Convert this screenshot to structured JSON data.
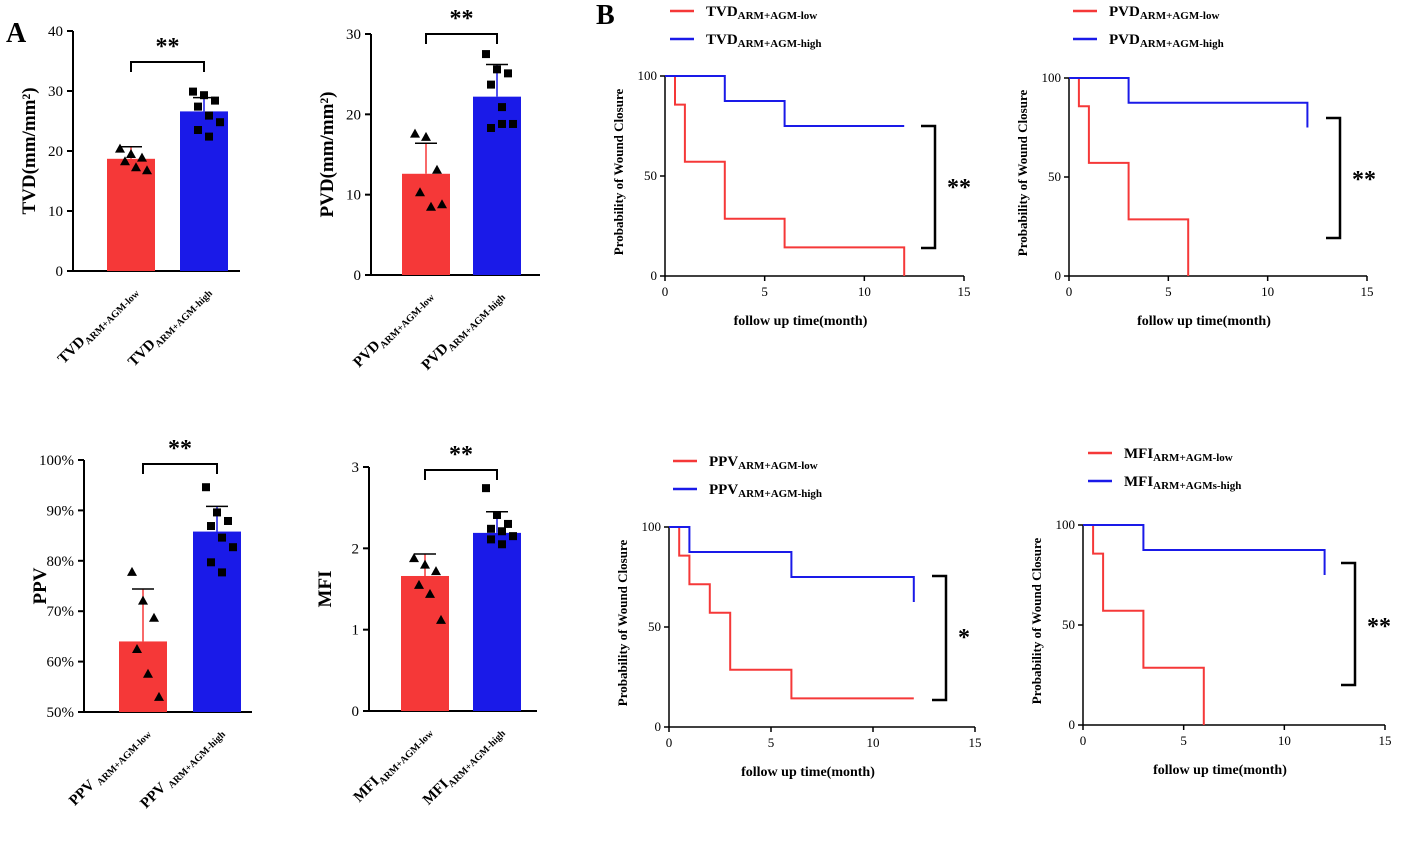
{
  "panels": {
    "a": "A",
    "b": "B"
  },
  "colors": {
    "low": "#f53838",
    "high": "#1a1ae8",
    "axis": "#000000"
  },
  "chart_data": [
    {
      "id": "tvd",
      "type": "bar",
      "ylabel": "TVD(mm/mm²)",
      "ylim": [
        0,
        40
      ],
      "yticks": [
        "0",
        "10",
        "20",
        "30",
        "40"
      ],
      "categories": [
        {
          "main": "TVD",
          "sub": "ARM+AGM-low"
        },
        {
          "main": "TVD",
          "sub": "ARM+AGM-high"
        }
      ],
      "values": [
        18.7,
        26.6
      ],
      "errors": [
        2.0,
        2.3
      ],
      "points": [
        [
          20.4,
          19.5,
          18.9,
          18.3,
          17.3,
          16.8
        ],
        [
          29.9,
          29.3,
          28.4,
          27.4,
          25.9,
          24.8,
          23.5,
          22.4
        ]
      ],
      "markers": [
        "triangle",
        "square"
      ],
      "significance": "**"
    },
    {
      "id": "pvd",
      "type": "bar",
      "ylabel": "PVD(mm/mm²)",
      "ylim": [
        0,
        30
      ],
      "yticks": [
        "0",
        "10",
        "20",
        "30"
      ],
      "categories": [
        {
          "main": "PVD",
          "sub": "ARM+AGM-low"
        },
        {
          "main": "PVD",
          "sub": "ARM+AGM-high"
        }
      ],
      "values": [
        12.6,
        22.2
      ],
      "errors": [
        3.8,
        4.0
      ],
      "points": [
        [
          17.6,
          17.2,
          13.1,
          10.3,
          8.5,
          8.8
        ],
        [
          27.5,
          25.6,
          25.1,
          23.7,
          20.9,
          18.8,
          18.3,
          18.8
        ]
      ],
      "markers": [
        "triangle",
        "square"
      ],
      "significance": "**"
    },
    {
      "id": "ppv",
      "type": "bar",
      "ylabel": "PPV",
      "ylim": [
        50,
        100
      ],
      "yticks": [
        "50%",
        "60%",
        "70%",
        "80%",
        "90%",
        "100%"
      ],
      "categories": [
        {
          "main": "PPV ",
          "sub": "ARM+AGM-low"
        },
        {
          "main": "PPV ",
          "sub": "ARM+AGM-high"
        }
      ],
      "values": [
        64.0,
        85.8
      ],
      "errors": [
        10.4,
        5.0
      ],
      "points": [
        [
          77.8,
          72.1,
          68.7,
          62.5,
          57.6,
          53.0
        ],
        [
          94.6,
          89.6,
          87.9,
          86.9,
          84.6,
          82.7,
          79.7,
          77.7
        ]
      ],
      "markers": [
        "triangle",
        "square"
      ],
      "significance": "**"
    },
    {
      "id": "mfi",
      "type": "bar",
      "ylabel": "MFI",
      "ylim": [
        0,
        3
      ],
      "yticks": [
        "0",
        "1",
        "2",
        "3"
      ],
      "categories": [
        {
          "main": "MFI",
          "sub": "ARM+AGM-low"
        },
        {
          "main": "MFI",
          "sub": "ARM+AGM-high"
        }
      ],
      "values": [
        1.66,
        2.19
      ],
      "errors": [
        0.27,
        0.26
      ],
      "points": [
        [
          1.88,
          1.8,
          1.72,
          1.55,
          1.44,
          1.12
        ],
        [
          2.74,
          2.41,
          2.3,
          2.24,
          2.21,
          2.15,
          2.11,
          2.05
        ]
      ],
      "markers": [
        "triangle",
        "square"
      ],
      "significance": "**"
    },
    {
      "id": "km_tvd",
      "type": "line",
      "ylabel": "Probability of Wound Closure",
      "xlabel": "follow up time(month)",
      "xlim": [
        0,
        15
      ],
      "ylim": [
        0,
        100
      ],
      "xticks": [
        "0",
        "5",
        "10",
        "15"
      ],
      "yticks": [
        "0",
        "50",
        "100"
      ],
      "series": [
        {
          "name": "TVD",
          "sub": "ARM+AGM-low",
          "color": "low",
          "x": [
            0,
            0.5,
            0.5,
            1,
            1,
            3,
            3,
            6,
            6,
            12,
            12
          ],
          "y": [
            100,
            100,
            85.7,
            85.7,
            57.1,
            57.1,
            28.6,
            28.6,
            14.3,
            14.3,
            0
          ]
        },
        {
          "name": "TVD",
          "sub": "ARM+AGM-high",
          "color": "high",
          "x": [
            0,
            3,
            3,
            6,
            6,
            12
          ],
          "y": [
            100,
            100,
            87.5,
            87.5,
            75,
            75
          ]
        }
      ],
      "significance": "**"
    },
    {
      "id": "km_pvd",
      "type": "line",
      "ylabel": "Probability of Wound Closure",
      "xlabel": "follow up time(month)",
      "xlim": [
        0,
        15
      ],
      "ylim": [
        0,
        100
      ],
      "xticks": [
        "0",
        "5",
        "10",
        "15"
      ],
      "yticks": [
        "0",
        "50",
        "100"
      ],
      "series": [
        {
          "name": "PVD",
          "sub": "ARM+AGM-low",
          "color": "low",
          "x": [
            0,
            0.5,
            0.5,
            1,
            1,
            3,
            3,
            6,
            6
          ],
          "y": [
            100,
            100,
            85.7,
            85.7,
            57.1,
            57.1,
            28.6,
            28.6,
            0
          ]
        },
        {
          "name": "PVD",
          "sub": "ARM+AGM-high",
          "color": "high",
          "x": [
            0,
            3,
            3,
            12,
            12
          ],
          "y": [
            100,
            100,
            87.5,
            87.5,
            75
          ]
        }
      ],
      "significance": "**"
    },
    {
      "id": "km_ppv",
      "type": "line",
      "ylabel": "Probability of Wound Closure",
      "xlabel": "follow up time(month)",
      "xlim": [
        0,
        15
      ],
      "ylim": [
        0,
        100
      ],
      "xticks": [
        "0",
        "5",
        "10",
        "15"
      ],
      "yticks": [
        "0",
        "50",
        "100"
      ],
      "series": [
        {
          "name": "PPV",
          "sub": "ARM+AGM-low",
          "color": "low",
          "x": [
            0,
            0.5,
            0.5,
            1,
            1,
            2,
            2,
            3,
            3,
            6,
            6,
            12
          ],
          "y": [
            100,
            100,
            85.7,
            85.7,
            71.4,
            71.4,
            57.1,
            57.1,
            28.6,
            28.6,
            14.3,
            14.3
          ]
        },
        {
          "name": "PPV",
          "sub": "ARM+AGM-high",
          "color": "high",
          "x": [
            0,
            1,
            1,
            6,
            6,
            12,
            12
          ],
          "y": [
            100,
            100,
            87.5,
            87.5,
            75,
            75,
            62.5
          ]
        }
      ],
      "significance": "*"
    },
    {
      "id": "km_mfi",
      "type": "line",
      "ylabel": "Probability of Wound Closure",
      "xlabel": "follow up time(month)",
      "xlim": [
        0,
        15
      ],
      "ylim": [
        0,
        100
      ],
      "xticks": [
        "0",
        "5",
        "10",
        "15"
      ],
      "yticks": [
        "0",
        "50",
        "100"
      ],
      "series": [
        {
          "name": "MFI",
          "sub": "ARM+AGM-low",
          "color": "low",
          "x": [
            0,
            0.5,
            0.5,
            1,
            1,
            3,
            3,
            6,
            6
          ],
          "y": [
            100,
            100,
            85.7,
            85.7,
            57.1,
            57.1,
            28.6,
            28.6,
            0
          ]
        },
        {
          "name": "MFI",
          "sub": "ARM+AGMs-high",
          "color": "high",
          "x": [
            0,
            3,
            3,
            12,
            12
          ],
          "y": [
            100,
            100,
            87.5,
            87.5,
            75
          ]
        }
      ],
      "significance": "**"
    }
  ]
}
